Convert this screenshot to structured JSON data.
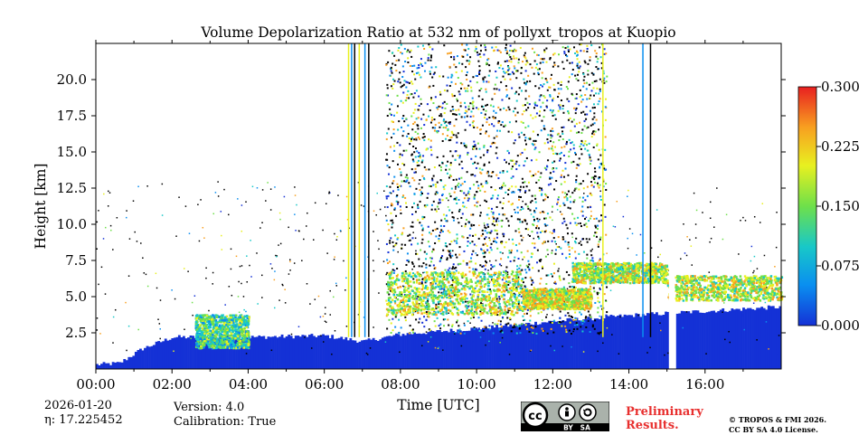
{
  "chart_data": {
    "type": "heatmap",
    "title": "Volume Depolarization Ratio at 532 nm of pollyxt_tropos at Kuopio",
    "xlabel": "Time [UTC]",
    "ylabel": "Height [km]",
    "xlim": [
      0,
      18
    ],
    "ylim": [
      0,
      22.5
    ],
    "xticks": [
      0,
      2,
      4,
      6,
      8,
      10,
      12,
      14,
      16
    ],
    "xtick_labels": [
      "00:00",
      "02:00",
      "04:00",
      "06:00",
      "08:00",
      "10:00",
      "12:00",
      "14:00",
      "16:00"
    ],
    "yticks": [
      2.5,
      5.0,
      7.5,
      10.0,
      12.5,
      15.0,
      17.5,
      20.0
    ],
    "ytick_labels": [
      "2.5",
      "5.0",
      "7.5",
      "10.0",
      "12.5",
      "15.0",
      "17.5",
      "20.0"
    ],
    "colorbar": {
      "range": [
        0.0,
        0.3
      ],
      "ticks": [
        "0.000",
        "0.075",
        "0.150",
        "0.225",
        "0.300"
      ],
      "colormap": [
        "#1431d6",
        "#0a8ff0",
        "#18c8c8",
        "#6ee04a",
        "#e8f020",
        "#f8a020",
        "#e82020"
      ]
    },
    "features": {
      "boundary_layer_top_km": [
        [
          0,
          0.3
        ],
        [
          0.6,
          0.4
        ],
        [
          1.2,
          1.4
        ],
        [
          2.0,
          2.2
        ],
        [
          4.0,
          2.2
        ],
        [
          6.0,
          2.3
        ],
        [
          7.0,
          1.9
        ],
        [
          8.0,
          2.4
        ],
        [
          10.0,
          2.8
        ],
        [
          12.0,
          3.3
        ],
        [
          14.0,
          3.7
        ],
        [
          16.0,
          4.0
        ],
        [
          18.0,
          4.3
        ]
      ],
      "cloud_layers": [
        {
          "t_start": 2.6,
          "t_end": 4.0,
          "base_km": 1.5,
          "top_km": 3.8,
          "ratio": 0.15
        },
        {
          "t_start": 7.6,
          "t_end": 11.2,
          "base_km": 3.8,
          "top_km": 6.8,
          "ratio": 0.2
        },
        {
          "t_start": 11.2,
          "t_end": 13.0,
          "base_km": 4.2,
          "top_km": 5.6,
          "ratio": 0.22
        },
        {
          "t_start": 12.5,
          "t_end": 15.0,
          "base_km": 6.0,
          "top_km": 7.4,
          "ratio": 0.2
        },
        {
          "t_start": 15.0,
          "t_end": 18.0,
          "base_km": 4.8,
          "top_km": 6.5,
          "ratio": 0.2
        }
      ],
      "noisy_interval_h": [
        7.6,
        13.4
      ],
      "missing_data_h": [
        [
          15.05,
          15.2
        ]
      ]
    }
  },
  "info": {
    "date": "2026-01-20",
    "eta_label": "η: 17.225452",
    "version": "Version: 4.0",
    "calibration": "Calibration: True"
  },
  "footer": {
    "preliminary_line1": "Preliminary",
    "preliminary_line2": "Results.",
    "copyright_line1": "© TROPOS & FMI 2026.",
    "copyright_line2": "CC BY SA 4.0 License.",
    "badge_text": "BY   SA"
  },
  "colors": {
    "preliminary": "#e8302f",
    "badge_bg": "#aab2ab"
  }
}
